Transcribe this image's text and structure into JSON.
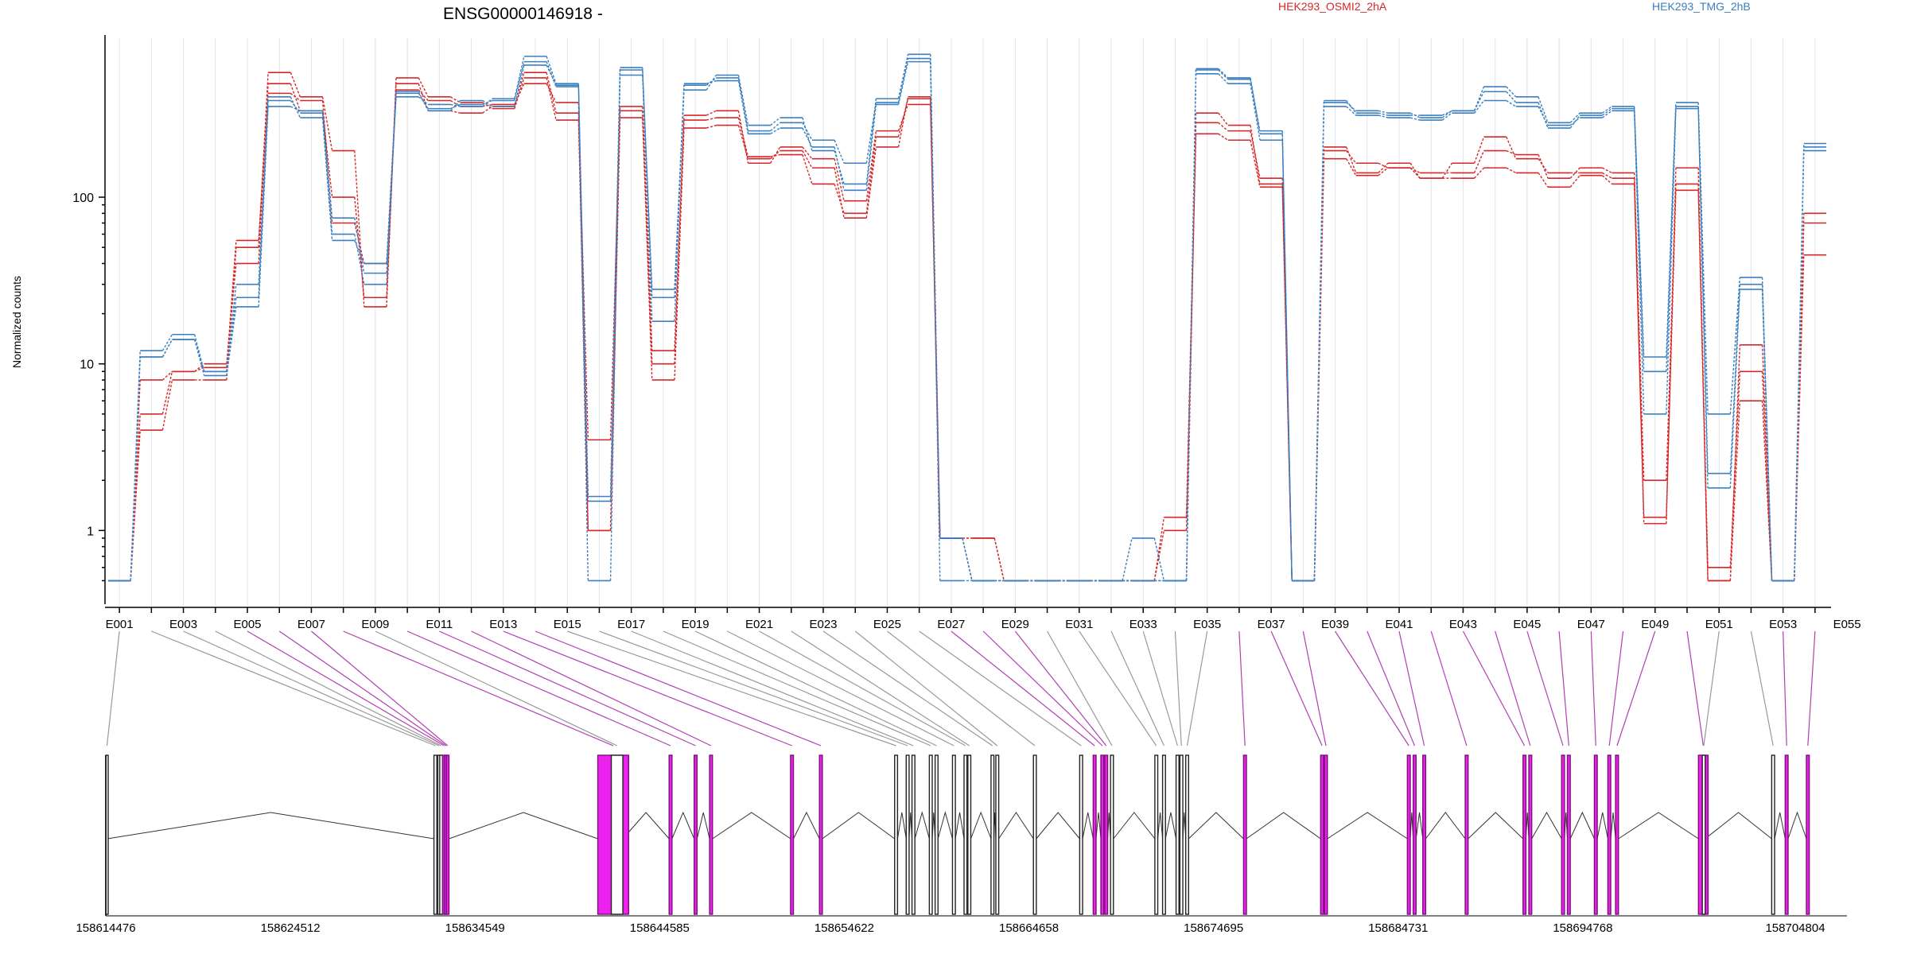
{
  "chart_data": {
    "type": "line",
    "title": "ENSG00000146918 -",
    "ylabel": "Normalized counts",
    "yscale": "log",
    "ylim": [
      0.45,
      900
    ],
    "y_ticks": [
      {
        "value": 1,
        "label": "1"
      },
      {
        "value": 10,
        "label": "10"
      },
      {
        "value": 100,
        "label": "100"
      }
    ],
    "legend": [
      {
        "name": "HEK293_OSMI2_2hA",
        "color": "#d62728"
      },
      {
        "name": "HEK293_TMG_2hB",
        "color": "#3a7fbf"
      }
    ],
    "exon_labels": [
      "E001",
      "E003",
      "E005",
      "E007",
      "E009",
      "E011",
      "E013",
      "E015",
      "E017",
      "E019",
      "E021",
      "E023",
      "E025",
      "E027",
      "E029",
      "E031",
      "E033",
      "E035",
      "E037",
      "E039",
      "E041",
      "E043",
      "E045",
      "E047",
      "E049",
      "E051",
      "E053",
      "E055"
    ],
    "series": [
      {
        "name": "HEK293_OSMI2_2hA",
        "color": "#d62728",
        "values": [
          0.5,
          5,
          9,
          9.5,
          55,
          420,
          380,
          70,
          40,
          440,
          380,
          350,
          360,
          480,
          370,
          1,
          330,
          10,
          290,
          300,
          175,
          180,
          120,
          80,
          230,
          390,
          0.9,
          0.5,
          0.5,
          0.5,
          0.5,
          0.5,
          0.5,
          1.2,
          280,
          250,
          130,
          0.5,
          190,
          160,
          150,
          140,
          140,
          190,
          180,
          130,
          150,
          140,
          2,
          120,
          0.6,
          9,
          0.5,
          80
        ]
      },
      {
        "name": "HEK293_OSMI2_2hA",
        "color": "#d62728",
        "values": [
          0.5,
          8,
          9,
          10,
          40,
          480,
          330,
          100,
          25,
          480,
          330,
          320,
          350,
          560,
          320,
          3.5,
          350,
          12,
          310,
          330,
          160,
          200,
          170,
          95,
          250,
          360,
          0.9,
          0.9,
          0.5,
          0.5,
          0.5,
          0.5,
          0.5,
          0.5,
          320,
          270,
          120,
          0.5,
          200,
          140,
          160,
          130,
          160,
          230,
          170,
          140,
          140,
          130,
          1.1,
          150,
          0.5,
          13,
          0.5,
          70
        ]
      },
      {
        "name": "HEK293_OSMI2_2hA",
        "color": "#d62728",
        "values": [
          0.5,
          4,
          8,
          8,
          50,
          560,
          400,
          190,
          22,
          520,
          400,
          370,
          340,
          520,
          290,
          1,
          300,
          8,
          260,
          270,
          170,
          190,
          150,
          75,
          200,
          400,
          0.9,
          0.9,
          0.5,
          0.5,
          0.5,
          0.5,
          0.5,
          1,
          240,
          220,
          115,
          0.5,
          170,
          135,
          150,
          130,
          130,
          150,
          140,
          115,
          135,
          120,
          1.2,
          110,
          0.5,
          6,
          0.5,
          45
        ]
      },
      {
        "name": "HEK293_TMG_2hB",
        "color": "#3a7fbf",
        "values": [
          0.5,
          11,
          14,
          9,
          25,
          380,
          320,
          75,
          35,
          420,
          340,
          360,
          380,
          650,
          460,
          1.5,
          580,
          28,
          470,
          520,
          250,
          280,
          220,
          160,
          370,
          680,
          0.9,
          0.5,
          0.5,
          0.5,
          0.5,
          0.5,
          0.5,
          0.5,
          580,
          510,
          250,
          0.5,
          370,
          330,
          320,
          300,
          330,
          430,
          370,
          260,
          310,
          340,
          9,
          350,
          2.2,
          30,
          0.5,
          210
        ]
      },
      {
        "name": "HEK293_TMG_2hB",
        "color": "#3a7fbf",
        "values": [
          0.5,
          12,
          15,
          9,
          30,
          400,
          300,
          55,
          40,
          400,
          360,
          350,
          390,
          700,
          480,
          1.6,
          600,
          25,
          440,
          540,
          270,
          300,
          190,
          120,
          390,
          720,
          0.9,
          0.5,
          0.5,
          0.5,
          0.5,
          0.5,
          0.5,
          0.5,
          590,
          520,
          240,
          0.5,
          380,
          320,
          310,
          310,
          330,
          460,
          400,
          280,
          320,
          350,
          11,
          370,
          5,
          33,
          0.5,
          190
        ]
      },
      {
        "name": "HEK293_TMG_2hB",
        "color": "#3a7fbf",
        "values": [
          0.5,
          11,
          14,
          8.5,
          22,
          350,
          330,
          60,
          30,
          430,
          330,
          380,
          350,
          620,
          470,
          0.5,
          540,
          18,
          480,
          500,
          240,
          260,
          200,
          110,
          360,
          650,
          0.5,
          0.5,
          0.5,
          0.5,
          0.5,
          0.5,
          0.9,
          0.5,
          550,
          480,
          220,
          0.5,
          350,
          310,
          300,
          290,
          320,
          380,
          350,
          270,
          300,
          330,
          5,
          340,
          1.8,
          28,
          0.5,
          200
        ]
      }
    ],
    "genomic_axis_labels": [
      "158614476",
      "158624512",
      "158634549",
      "158644585",
      "158654622",
      "158664658",
      "158674695",
      "158684731",
      "158694768",
      "158704804"
    ],
    "exon_colors": {
      "significant": "#ee22ee",
      "normal": "#222222"
    },
    "grid": "vertical",
    "legend_position": "top"
  }
}
